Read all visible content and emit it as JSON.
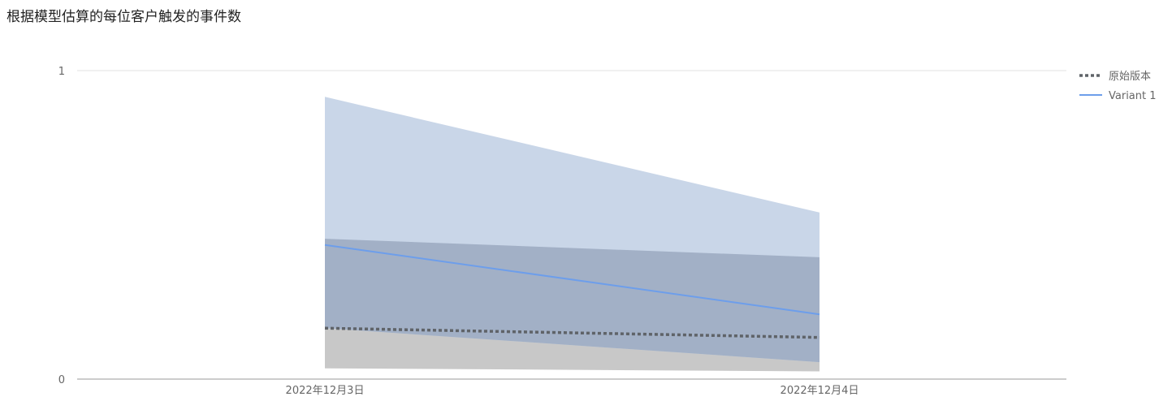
{
  "chart_data": {
    "type": "line",
    "title": "根据模型估算的每位客户触发的事件数",
    "xlabel": "",
    "ylabel": "",
    "categories": [
      "2022年12月3日",
      "2022年12月4日"
    ],
    "ylim": [
      0,
      1
    ],
    "yticks": [
      0,
      1
    ],
    "grid": true,
    "legend_position": "right-top",
    "series": [
      {
        "name": "原始版本",
        "values": [
          0.165,
          0.135
        ],
        "band_lower": [
          0.035,
          0.025
        ],
        "band_upper": [
          0.455,
          0.395
        ],
        "line_color": "#5f6368",
        "band_color": "#c8c8c8",
        "line_style": "dotted"
      },
      {
        "name": "Variant 1",
        "values": [
          0.435,
          0.21
        ],
        "band_lower": [
          0.165,
          0.055
        ],
        "band_upper": [
          0.915,
          0.54
        ],
        "line_color": "#6d9eeb",
        "band_color": "#c9d6e8",
        "line_style": "solid"
      }
    ],
    "overlap_color": "#a2b0c6"
  }
}
